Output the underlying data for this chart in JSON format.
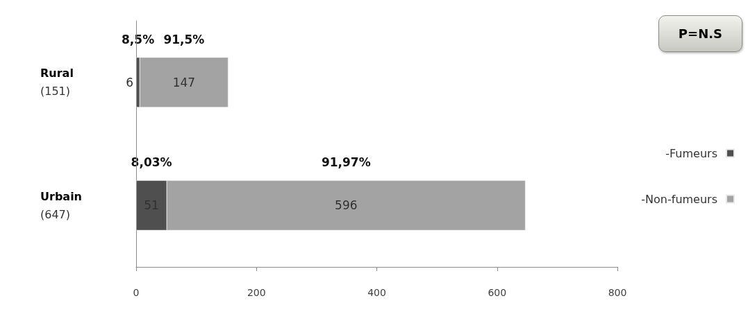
{
  "chart_data": {
    "type": "bar",
    "orientation": "horizontal",
    "stacked": true,
    "categories": [
      "Rural\n(151)",
      "Urbain\n(647)"
    ],
    "series": [
      {
        "name": "-Fumeurs",
        "color": "#4f4f4f",
        "values": [
          6,
          51
        ]
      },
      {
        "name": "-Non-fumeurs",
        "color": "#a3a3a3",
        "values": [
          147,
          596
        ]
      }
    ],
    "xlim": [
      0,
      800
    ],
    "xticks": [
      0,
      200,
      400,
      600,
      800
    ],
    "data_labels": true,
    "grid": false,
    "legend": "right",
    "annotations": [
      "8,5%",
      "91,5%",
      "8,03%",
      "91,97%",
      "P=N.S"
    ]
  }
}
